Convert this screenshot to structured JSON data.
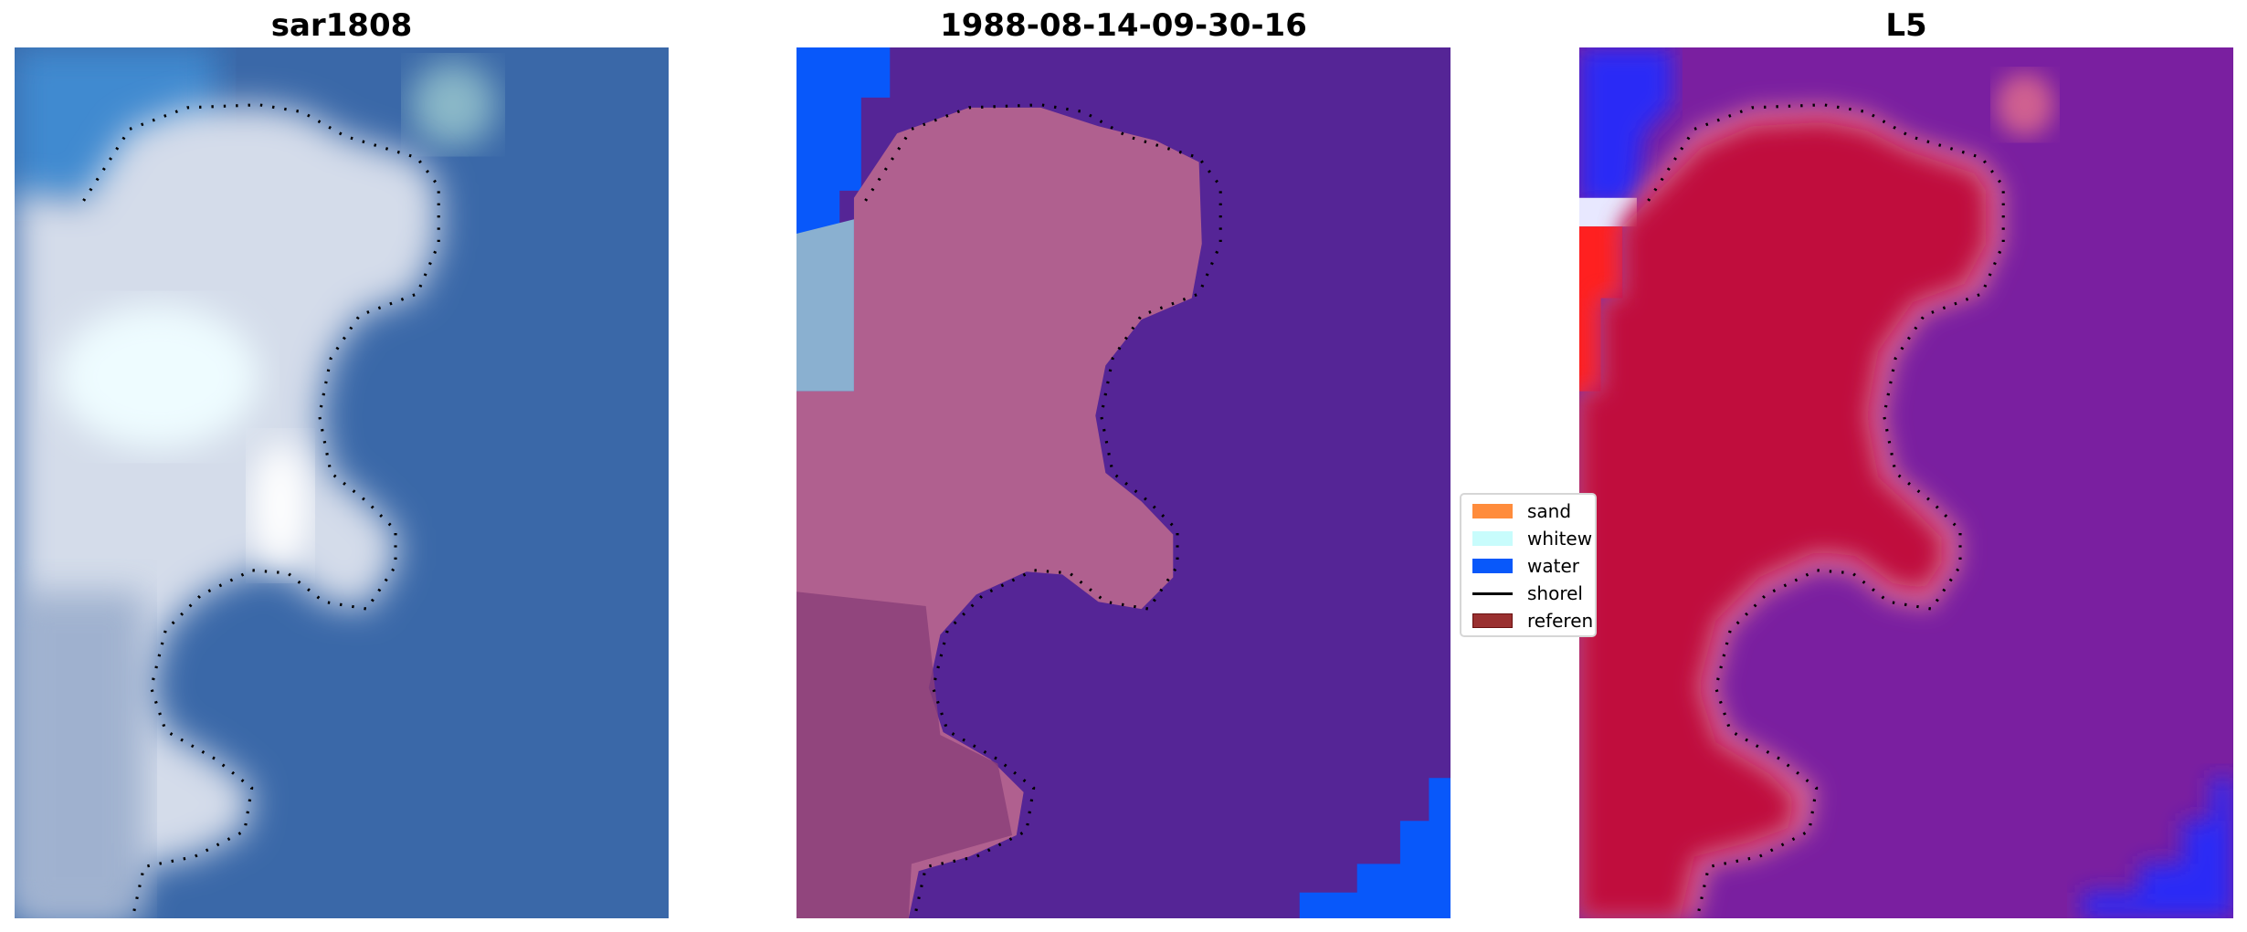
{
  "panels": [
    {
      "title": "sar1808",
      "background": "#3a68a8",
      "land": "#d8e0ec"
    },
    {
      "title": "1988-08-14-09-30-16",
      "background": "#552596",
      "land": "#b0608f",
      "water": "#0858fa"
    },
    {
      "title": "L5",
      "background": "#7a1fa0",
      "land": "#c00a3e",
      "water": "#2a2cf6"
    }
  ],
  "legend": {
    "items": [
      {
        "label": "sand",
        "color": "#ff8c3c",
        "kind": "patch"
      },
      {
        "label": "whitew",
        "color": "#c8fcfc",
        "kind": "patch"
      },
      {
        "label": "water",
        "color": "#0858fa",
        "kind": "patch"
      },
      {
        "label": "shorel",
        "color": "#000000",
        "kind": "line"
      },
      {
        "label": "referen",
        "color": "#9a3030",
        "kind": "patch"
      }
    ]
  }
}
